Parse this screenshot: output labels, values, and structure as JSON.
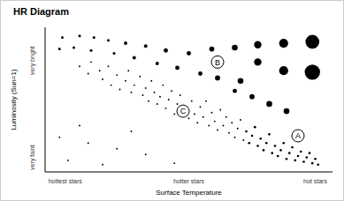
{
  "chart_data": {
    "type": "scatter",
    "title": "HR Diagram",
    "x_label": "Surface Temperature",
    "y_label": "Luminosity (Sun=1)",
    "xlim": [
      0,
      10
    ],
    "ylim": [
      0,
      10
    ],
    "xticks": [
      {
        "value": 0.7,
        "label": "hottest stars"
      },
      {
        "value": 5,
        "label": "hotter stars"
      },
      {
        "value": 9.4,
        "label": "hot stars"
      }
    ],
    "yticks": [
      {
        "value": 1,
        "label": "very faint"
      },
      {
        "value": 7.7,
        "label": "very bright"
      }
    ],
    "grid": false,
    "color": "#000000",
    "marker": "circle",
    "points": [
      {
        "x": 0.6,
        "y": 9.3,
        "size": 1
      },
      {
        "x": 1.2,
        "y": 9.4,
        "size": 1
      },
      {
        "x": 1.7,
        "y": 9.3,
        "size": 1
      },
      {
        "x": 2.2,
        "y": 9.1,
        "size": 1
      },
      {
        "x": 2.8,
        "y": 8.9,
        "size": 1.5
      },
      {
        "x": 3.5,
        "y": 8.7,
        "size": 1.5
      },
      {
        "x": 4.2,
        "y": 8.4,
        "size": 2
      },
      {
        "x": 5.0,
        "y": 8.2,
        "size": 2
      },
      {
        "x": 5.8,
        "y": 8.5,
        "size": 2.5
      },
      {
        "x": 6.6,
        "y": 8.6,
        "size": 3
      },
      {
        "x": 7.4,
        "y": 8.8,
        "size": 4
      },
      {
        "x": 8.3,
        "y": 8.9,
        "size": 5
      },
      {
        "x": 9.3,
        "y": 9.0,
        "size": 8
      },
      {
        "x": 0.5,
        "y": 8.5,
        "size": 1
      },
      {
        "x": 1.0,
        "y": 8.6,
        "size": 1
      },
      {
        "x": 1.6,
        "y": 8.4,
        "size": 1
      },
      {
        "x": 2.4,
        "y": 8.2,
        "size": 1
      },
      {
        "x": 3.1,
        "y": 7.9,
        "size": 1.5
      },
      {
        "x": 3.9,
        "y": 7.5,
        "size": 1.5
      },
      {
        "x": 4.6,
        "y": 7.2,
        "size": 2
      },
      {
        "x": 5.4,
        "y": 6.8,
        "size": 2
      },
      {
        "x": 6.0,
        "y": 6.5,
        "size": 2.5
      },
      {
        "x": 6.8,
        "y": 6.3,
        "size": 3
      },
      {
        "x": 7.4,
        "y": 7.6,
        "size": 4
      },
      {
        "x": 8.3,
        "y": 7.0,
        "size": 5
      },
      {
        "x": 9.3,
        "y": 6.9,
        "size": 9
      },
      {
        "x": 6.6,
        "y": 5.6,
        "size": 2
      },
      {
        "x": 7.2,
        "y": 5.2,
        "size": 2.5
      },
      {
        "x": 7.8,
        "y": 4.7,
        "size": 3
      },
      {
        "x": 8.4,
        "y": 4.2,
        "size": 3
      },
      {
        "x": 1.2,
        "y": 7.3,
        "size": 0.4
      },
      {
        "x": 1.5,
        "y": 6.8,
        "size": 0.4
      },
      {
        "x": 1.6,
        "y": 7.6,
        "size": 0.4
      },
      {
        "x": 1.9,
        "y": 7.0,
        "size": 0.4
      },
      {
        "x": 2.0,
        "y": 6.4,
        "size": 0.4
      },
      {
        "x": 2.2,
        "y": 7.3,
        "size": 0.4
      },
      {
        "x": 2.3,
        "y": 6.0,
        "size": 0.4
      },
      {
        "x": 2.5,
        "y": 6.7,
        "size": 0.4
      },
      {
        "x": 2.6,
        "y": 5.7,
        "size": 0.4
      },
      {
        "x": 2.8,
        "y": 6.3,
        "size": 0.4
      },
      {
        "x": 2.9,
        "y": 7.0,
        "size": 0.4
      },
      {
        "x": 3.0,
        "y": 5.5,
        "size": 0.4
      },
      {
        "x": 3.1,
        "y": 6.0,
        "size": 0.4
      },
      {
        "x": 3.3,
        "y": 6.6,
        "size": 0.4
      },
      {
        "x": 3.4,
        "y": 5.3,
        "size": 0.4
      },
      {
        "x": 3.5,
        "y": 5.8,
        "size": 0.4
      },
      {
        "x": 3.6,
        "y": 4.9,
        "size": 0.4
      },
      {
        "x": 3.7,
        "y": 6.3,
        "size": 0.4
      },
      {
        "x": 3.8,
        "y": 5.5,
        "size": 0.4
      },
      {
        "x": 3.9,
        "y": 4.7,
        "size": 0.4
      },
      {
        "x": 4.0,
        "y": 5.2,
        "size": 0.4
      },
      {
        "x": 4.1,
        "y": 6.0,
        "size": 0.4
      },
      {
        "x": 4.2,
        "y": 4.4,
        "size": 0.4
      },
      {
        "x": 4.3,
        "y": 5.0,
        "size": 0.4
      },
      {
        "x": 4.4,
        "y": 5.6,
        "size": 0.4
      },
      {
        "x": 4.5,
        "y": 4.0,
        "size": 0.4
      },
      {
        "x": 4.6,
        "y": 4.7,
        "size": 0.4
      },
      {
        "x": 4.7,
        "y": 5.3,
        "size": 0.4
      },
      {
        "x": 4.9,
        "y": 4.3,
        "size": 0.4
      },
      {
        "x": 5.0,
        "y": 3.7,
        "size": 0.4
      },
      {
        "x": 5.1,
        "y": 4.9,
        "size": 0.4
      },
      {
        "x": 5.2,
        "y": 4.0,
        "size": 0.4
      },
      {
        "x": 5.3,
        "y": 3.4,
        "size": 0.4
      },
      {
        "x": 5.4,
        "y": 4.5,
        "size": 0.4
      },
      {
        "x": 5.5,
        "y": 3.8,
        "size": 0.4
      },
      {
        "x": 5.6,
        "y": 4.9,
        "size": 0.4
      },
      {
        "x": 5.7,
        "y": 3.2,
        "size": 0.4
      },
      {
        "x": 5.8,
        "y": 4.1,
        "size": 0.4
      },
      {
        "x": 5.9,
        "y": 3.5,
        "size": 0.4
      },
      {
        "x": 6.0,
        "y": 2.9,
        "size": 0.4
      },
      {
        "x": 6.1,
        "y": 4.3,
        "size": 0.4
      },
      {
        "x": 6.2,
        "y": 3.2,
        "size": 0.4
      },
      {
        "x": 6.3,
        "y": 3.8,
        "size": 0.4
      },
      {
        "x": 6.4,
        "y": 2.7,
        "size": 0.4
      },
      {
        "x": 6.5,
        "y": 3.4,
        "size": 0.4
      },
      {
        "x": 6.6,
        "y": 2.4,
        "size": 0.4
      },
      {
        "x": 6.7,
        "y": 3.0,
        "size": 0.4
      },
      {
        "x": 6.8,
        "y": 3.6,
        "size": 0.4
      },
      {
        "x": 6.9,
        "y": 2.2,
        "size": 0.4
      },
      {
        "x": 7.0,
        "y": 2.8,
        "size": 0.8
      },
      {
        "x": 7.1,
        "y": 2.0,
        "size": 0.8
      },
      {
        "x": 7.2,
        "y": 2.5,
        "size": 0.8
      },
      {
        "x": 7.3,
        "y": 3.1,
        "size": 0.8
      },
      {
        "x": 7.4,
        "y": 1.8,
        "size": 0.8
      },
      {
        "x": 7.5,
        "y": 2.3,
        "size": 0.8
      },
      {
        "x": 7.6,
        "y": 1.5,
        "size": 0.8
      },
      {
        "x": 7.7,
        "y": 2.0,
        "size": 0.8
      },
      {
        "x": 7.8,
        "y": 2.6,
        "size": 0.8
      },
      {
        "x": 7.9,
        "y": 1.3,
        "size": 0.8
      },
      {
        "x": 8.0,
        "y": 1.8,
        "size": 0.8
      },
      {
        "x": 8.1,
        "y": 1.1,
        "size": 0.8
      },
      {
        "x": 8.2,
        "y": 1.5,
        "size": 0.8
      },
      {
        "x": 8.3,
        "y": 2.0,
        "size": 0.8
      },
      {
        "x": 8.4,
        "y": 0.9,
        "size": 0.8
      },
      {
        "x": 8.5,
        "y": 1.3,
        "size": 0.8
      },
      {
        "x": 8.6,
        "y": 1.7,
        "size": 0.8
      },
      {
        "x": 8.7,
        "y": 0.8,
        "size": 0.8
      },
      {
        "x": 8.8,
        "y": 1.1,
        "size": 0.8
      },
      {
        "x": 8.9,
        "y": 1.4,
        "size": 0.8
      },
      {
        "x": 9.0,
        "y": 0.7,
        "size": 0.8
      },
      {
        "x": 9.1,
        "y": 1.0,
        "size": 0.8
      },
      {
        "x": 9.2,
        "y": 1.3,
        "size": 0.8
      },
      {
        "x": 9.3,
        "y": 0.6,
        "size": 0.8
      },
      {
        "x": 9.4,
        "y": 0.9,
        "size": 0.8
      },
      {
        "x": 9.5,
        "y": 0.5,
        "size": 0.8
      },
      {
        "x": 0.5,
        "y": 2.4,
        "size": 0.4
      },
      {
        "x": 1.5,
        "y": 2.0,
        "size": 0.4
      },
      {
        "x": 0.8,
        "y": 0.8,
        "size": 0.4
      },
      {
        "x": 2.5,
        "y": 1.6,
        "size": 0.4
      },
      {
        "x": 3.5,
        "y": 1.2,
        "size": 0.4
      },
      {
        "x": 2.0,
        "y": 0.5,
        "size": 0.4
      },
      {
        "x": 4.5,
        "y": 0.6,
        "size": 0.4
      },
      {
        "x": 1.2,
        "y": 3.2,
        "size": 0.4
      },
      {
        "x": 3.0,
        "y": 2.8,
        "size": 0.4
      }
    ],
    "annotations": [
      {
        "text": "A",
        "x": 8.8,
        "y": 2.5
      },
      {
        "text": "B",
        "x": 6.0,
        "y": 7.6
      },
      {
        "text": "C",
        "x": 4.8,
        "y": 4.2
      }
    ]
  }
}
